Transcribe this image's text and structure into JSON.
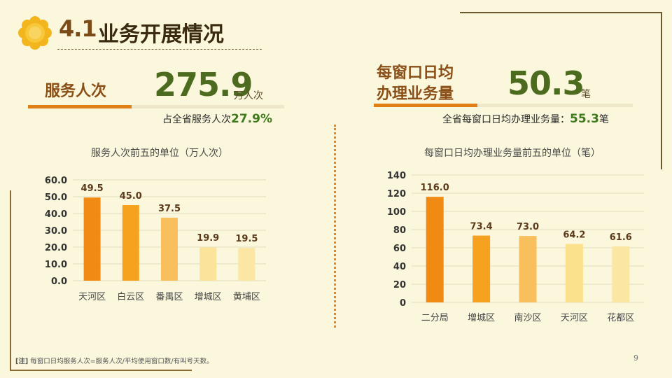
{
  "header": {
    "section_number": "4.1",
    "title": "业务开展情况"
  },
  "kpi_left": {
    "label": "服务人次",
    "value": "275.9",
    "unit": "万人次",
    "note_prefix": "占全省服务人次",
    "note_value": "27.9%"
  },
  "kpi_right": {
    "label_line1": "每窗口日均",
    "label_line2": "办理业务量",
    "value": "50.3",
    "unit": "笔",
    "note_prefix": "全省每窗口日均办理业务量：",
    "note_value": "55.3",
    "note_suffix": "笔"
  },
  "chart_data": [
    {
      "type": "bar",
      "title": "服务人次前五的单位（万人次）",
      "categories": [
        "天河区",
        "白云区",
        "番禺区",
        "增城区",
        "黄埔区"
      ],
      "values": [
        49.5,
        45.0,
        37.5,
        19.9,
        19.5
      ],
      "value_labels": [
        "49.5",
        "45.0",
        "37.5",
        "19.9",
        "19.5"
      ],
      "ylim": [
        0,
        60
      ],
      "yticks": [
        "0.0",
        "10.0",
        "20.0",
        "30.0",
        "40.0",
        "50.0",
        "60.0"
      ],
      "colors": [
        "#f08a12",
        "#f6a21e",
        "#f9bf5c",
        "#fbe49a",
        "#fbe6a4"
      ],
      "grid": true
    },
    {
      "type": "bar",
      "title": "每窗口日均办理业务量前五的单位（笔）",
      "categories": [
        "二分局",
        "增城区",
        "南沙区",
        "天河区",
        "花都区"
      ],
      "values": [
        116.0,
        73.4,
        73.0,
        64.2,
        61.6
      ],
      "value_labels": [
        "116.0",
        "73.4",
        "73.0",
        "64.2",
        "61.6"
      ],
      "ylim": [
        0,
        140
      ],
      "yticks": [
        "0",
        "20",
        "40",
        "60",
        "80",
        "100",
        "120",
        "140"
      ],
      "colors": [
        "#f08a12",
        "#f6a21e",
        "#f9bf5c",
        "#fbe18c",
        "#fbe6a4"
      ],
      "grid": true
    }
  ],
  "footnote": {
    "tag": "[注]",
    "text": "每窗口日均服务人次=服务人次/平均使用窗口数/有叫号天数。"
  },
  "page_number": "9",
  "colors": {
    "background": "#fbf7dc",
    "accent_orange": "#e07f15",
    "accent_green": "#4c6b1e",
    "title_brown": "#7a4a17"
  }
}
